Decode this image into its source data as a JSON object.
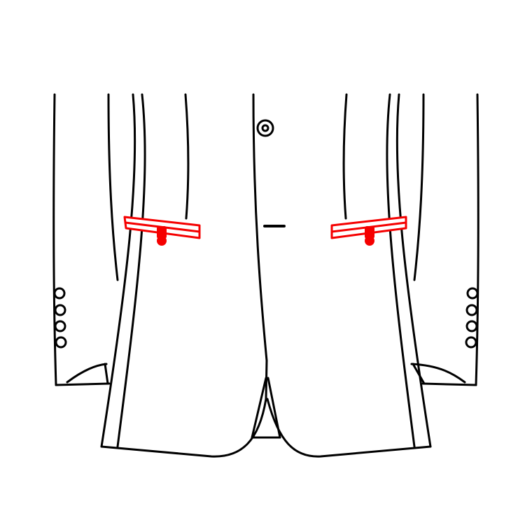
{
  "diagram": {
    "subject": "jacket-lower-front-flat-sketch",
    "colors": {
      "background": "#ffffff",
      "line": "#000000",
      "highlight": "#f50000"
    },
    "highlighted_feature": "flap-pockets",
    "pocket_count": 2,
    "sleeve_buttons_per_cuff": 4,
    "front_buttons_visible": 1
  }
}
